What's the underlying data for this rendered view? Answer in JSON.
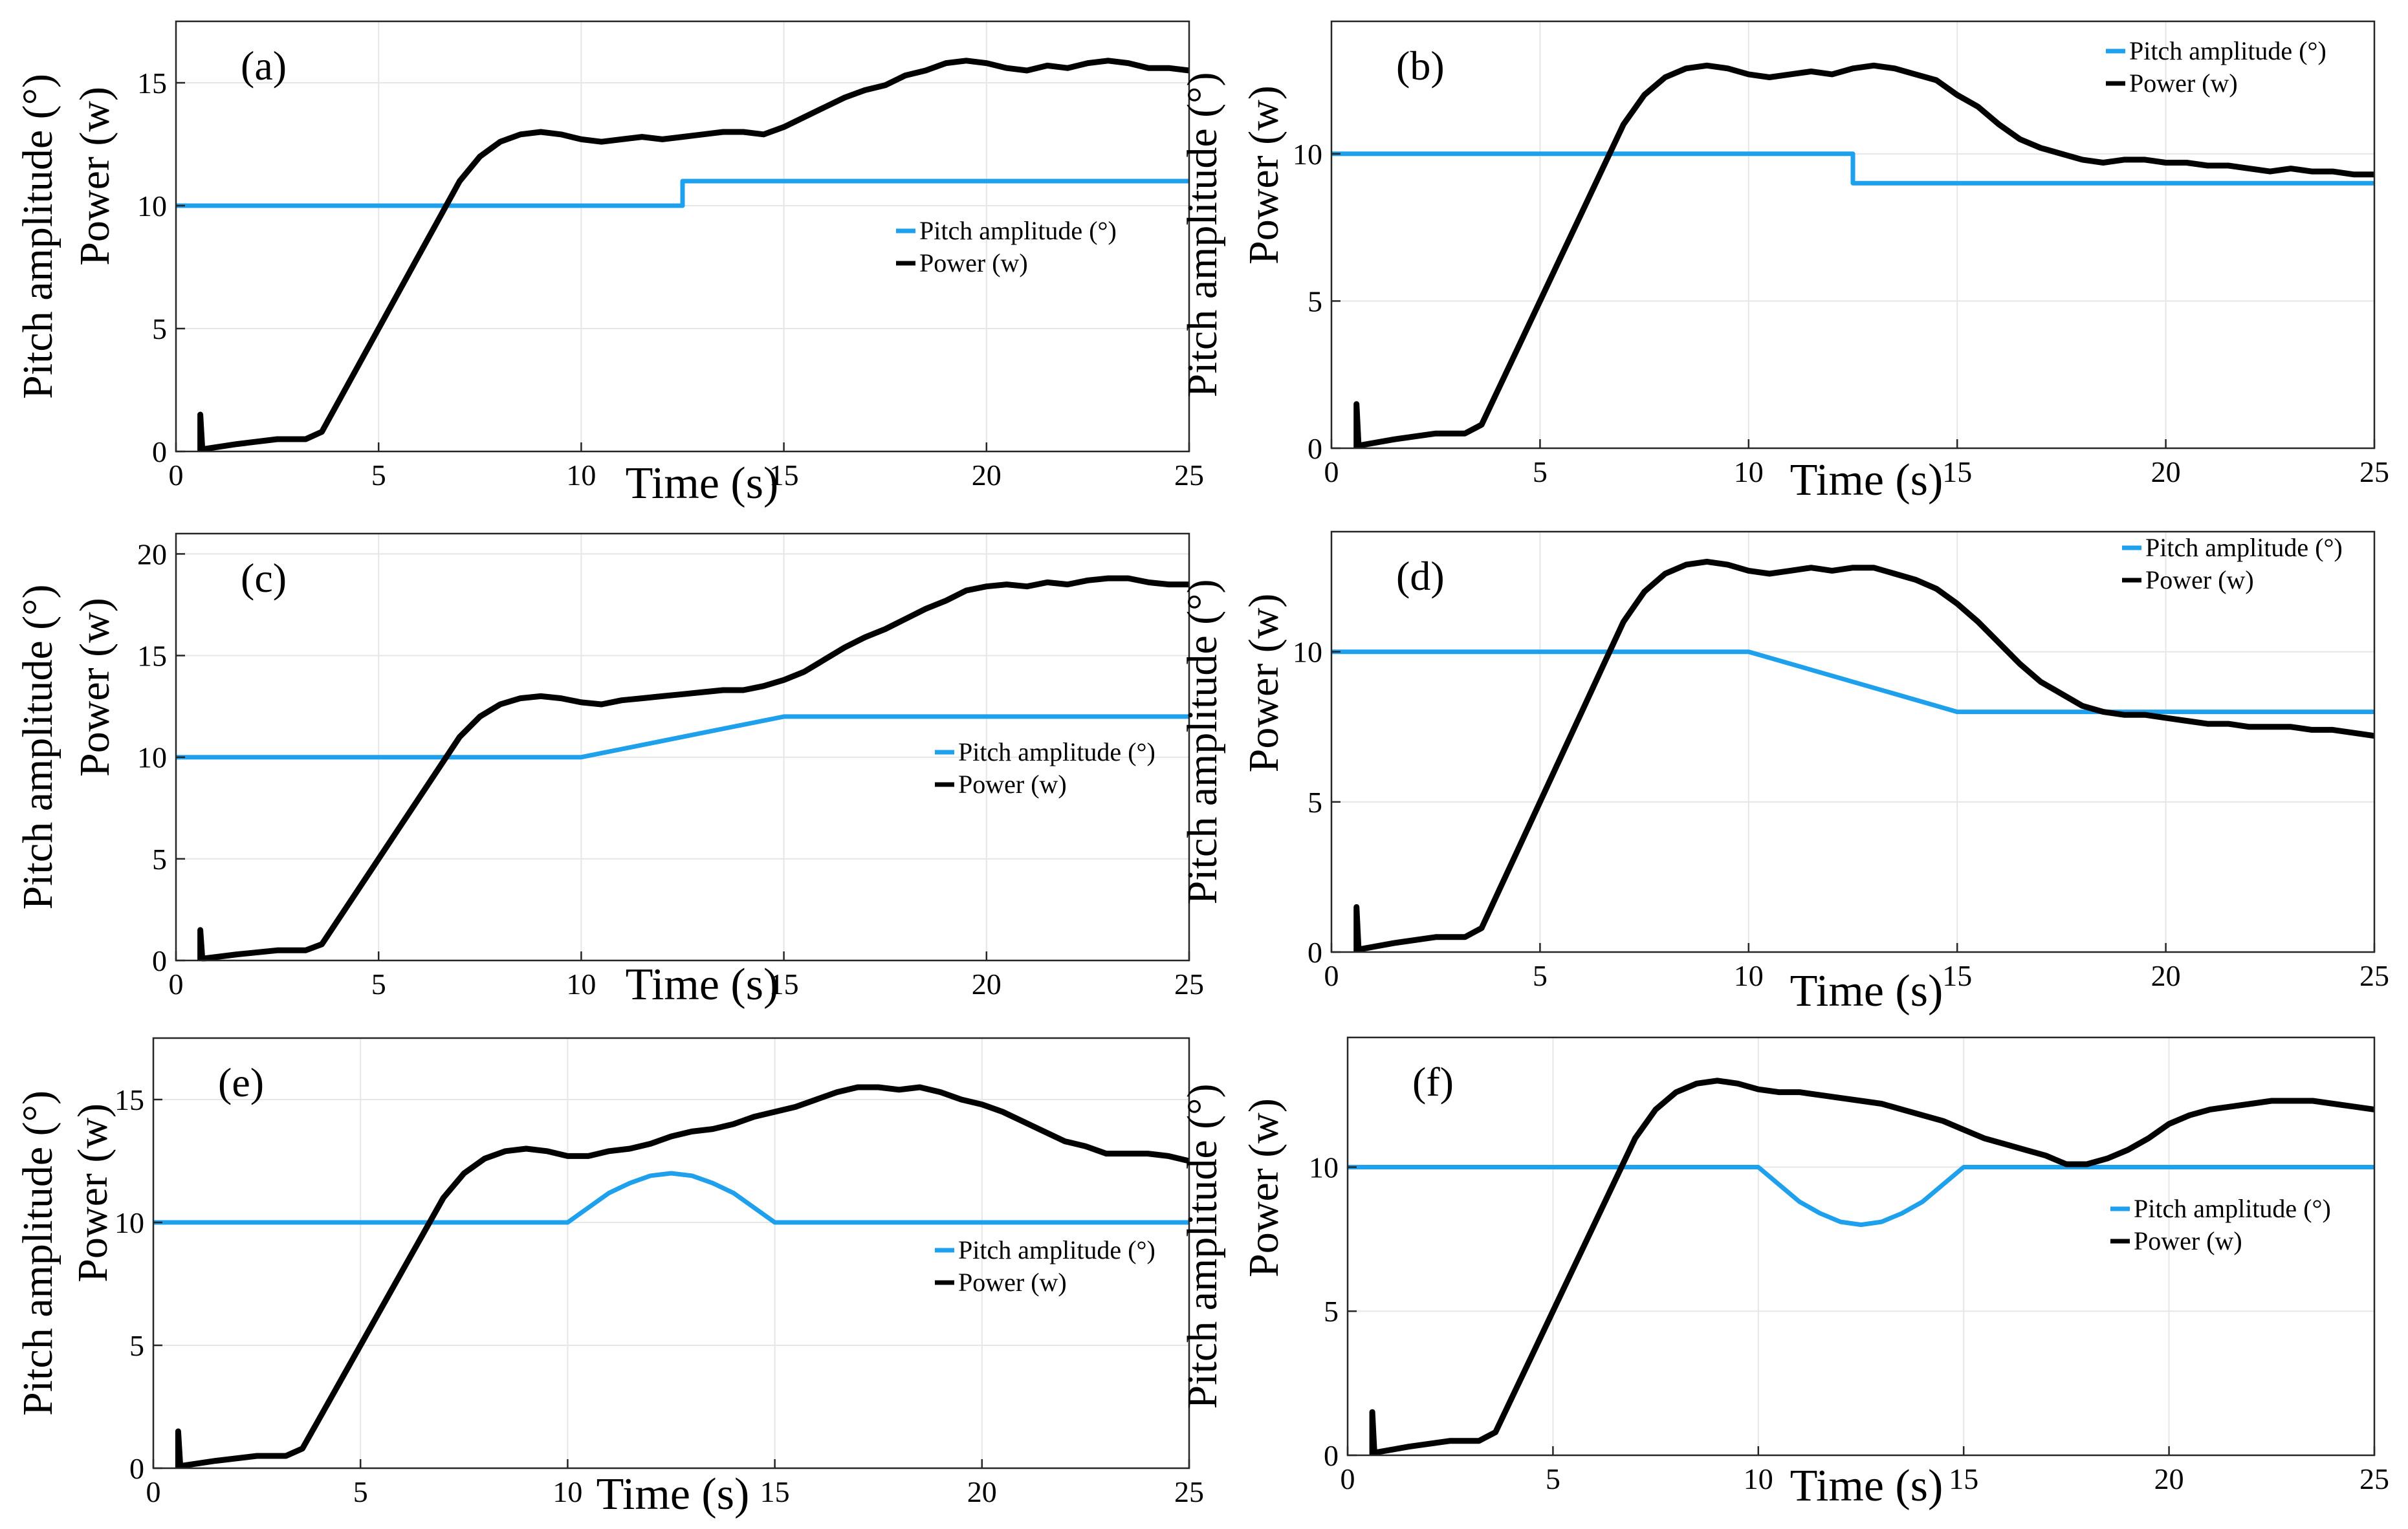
{
  "colors": {
    "pitch": "#1ea0ec",
    "power": "#000000",
    "grid": "#e6e6e6",
    "axis": "#262626"
  },
  "chart_data": [
    {
      "type": "line",
      "panel_label": "(a)",
      "xlabel": "Time (s)",
      "ylabel": "Pitch amplitude (°)",
      "ylabel2": "Power (w)",
      "xlim": [
        0,
        25
      ],
      "ylim": [
        0,
        17.5
      ],
      "xticks": [
        0,
        5,
        10,
        15,
        20,
        25
      ],
      "yticks": [
        0,
        5,
        10,
        15
      ],
      "legend": [
        "Pitch amplitude (°)",
        "Power (w)"
      ],
      "legend_position": "middle-right",
      "series": [
        {
          "name": "Pitch amplitude (°)",
          "x": [
            0,
            12.5,
            12.5,
            25
          ],
          "y": [
            10,
            10,
            11,
            11
          ]
        },
        {
          "name": "Power (w)",
          "x": [
            0.6,
            0.6,
            0.65,
            0.7,
            1.5,
            2.5,
            3.2,
            3.6,
            4.0,
            4.5,
            5.0,
            5.5,
            6.0,
            6.5,
            7.0,
            7.5,
            8.0,
            8.5,
            9.0,
            9.5,
            10.0,
            10.5,
            11.0,
            11.5,
            12.0,
            12.5,
            13.0,
            13.5,
            14.0,
            14.5,
            15.0,
            15.5,
            16.0,
            16.5,
            17.0,
            17.5,
            18.0,
            18.5,
            19.0,
            19.5,
            20.0,
            20.5,
            21.0,
            21.5,
            22.0,
            22.5,
            23.0,
            23.5,
            24.0,
            24.5,
            25.0
          ],
          "y": [
            0,
            1.5,
            0.1,
            0.1,
            0.3,
            0.5,
            0.5,
            0.8,
            2.0,
            3.5,
            5.0,
            6.5,
            8.0,
            9.5,
            11.0,
            12.0,
            12.6,
            12.9,
            13.0,
            12.9,
            12.7,
            12.6,
            12.7,
            12.8,
            12.7,
            12.8,
            12.9,
            13.0,
            13.0,
            12.9,
            13.2,
            13.6,
            14.0,
            14.4,
            14.7,
            14.9,
            15.3,
            15.5,
            15.8,
            15.9,
            15.8,
            15.6,
            15.5,
            15.7,
            15.6,
            15.8,
            15.9,
            15.8,
            15.6,
            15.6,
            15.5
          ]
        }
      ]
    },
    {
      "type": "line",
      "panel_label": "(b)",
      "xlabel": "Time (s)",
      "ylabel": "Pitch amplitude (°)",
      "ylabel2": "Power (w)",
      "xlim": [
        0,
        25
      ],
      "ylim": [
        0,
        14.5
      ],
      "xticks": [
        0,
        5,
        10,
        15,
        20,
        25
      ],
      "yticks": [
        0,
        5,
        10
      ],
      "legend": [
        "Pitch amplitude (°)",
        "Power (w)"
      ],
      "legend_position": "top-right",
      "series": [
        {
          "name": "Pitch amplitude (°)",
          "x": [
            0,
            12.5,
            12.5,
            25
          ],
          "y": [
            10,
            10,
            9,
            9
          ]
        },
        {
          "name": "Power (w)",
          "x": [
            0.6,
            0.6,
            0.65,
            0.7,
            1.5,
            2.5,
            3.2,
            3.6,
            4.0,
            4.5,
            5.0,
            5.5,
            6.0,
            6.5,
            7.0,
            7.5,
            8.0,
            8.5,
            9.0,
            9.5,
            10.0,
            10.5,
            11.0,
            11.5,
            12.0,
            12.5,
            13.0,
            13.5,
            14.0,
            14.5,
            15.0,
            15.5,
            16.0,
            16.5,
            17.0,
            17.5,
            18.0,
            18.5,
            19.0,
            19.5,
            20.0,
            20.5,
            21.0,
            21.5,
            22.0,
            22.5,
            23.0,
            23.5,
            24.0,
            24.5,
            25.0
          ],
          "y": [
            0,
            1.5,
            0.1,
            0.1,
            0.3,
            0.5,
            0.5,
            0.8,
            2.0,
            3.5,
            5.0,
            6.5,
            8.0,
            9.5,
            11.0,
            12.0,
            12.6,
            12.9,
            13.0,
            12.9,
            12.7,
            12.6,
            12.7,
            12.8,
            12.7,
            12.9,
            13.0,
            12.9,
            12.7,
            12.5,
            12.0,
            11.6,
            11.0,
            10.5,
            10.2,
            10.0,
            9.8,
            9.7,
            9.8,
            9.8,
            9.7,
            9.7,
            9.6,
            9.6,
            9.5,
            9.4,
            9.5,
            9.4,
            9.4,
            9.3,
            9.3
          ]
        }
      ]
    },
    {
      "type": "line",
      "panel_label": "(c)",
      "xlabel": "Time (s)",
      "ylabel": "Pitch amplitude (°)",
      "ylabel2": "Power (w)",
      "xlim": [
        0,
        25
      ],
      "ylim": [
        0,
        21
      ],
      "xticks": [
        0,
        5,
        10,
        15,
        20,
        25
      ],
      "yticks": [
        0,
        5,
        10,
        15,
        20
      ],
      "legend": [
        "Pitch amplitude (°)",
        "Power (w)"
      ],
      "legend_position": "middle-right",
      "series": [
        {
          "name": "Pitch amplitude (°)",
          "x": [
            0,
            10,
            15,
            25
          ],
          "y": [
            10,
            10,
            12,
            12
          ]
        },
        {
          "name": "Power (w)",
          "x": [
            0.6,
            0.6,
            0.65,
            0.7,
            1.5,
            2.5,
            3.2,
            3.6,
            4.0,
            4.5,
            5.0,
            5.5,
            6.0,
            6.5,
            7.0,
            7.5,
            8.0,
            8.5,
            9.0,
            9.5,
            10.0,
            10.5,
            11.0,
            11.5,
            12.0,
            12.5,
            13.0,
            13.5,
            14.0,
            14.5,
            15.0,
            15.5,
            16.0,
            16.5,
            17.0,
            17.5,
            18.0,
            18.5,
            19.0,
            19.5,
            20.0,
            20.5,
            21.0,
            21.5,
            22.0,
            22.5,
            23.0,
            23.5,
            24.0,
            24.5,
            25.0
          ],
          "y": [
            0,
            1.5,
            0.1,
            0.1,
            0.3,
            0.5,
            0.5,
            0.8,
            2.0,
            3.5,
            5.0,
            6.5,
            8.0,
            9.5,
            11.0,
            12.0,
            12.6,
            12.9,
            13.0,
            12.9,
            12.7,
            12.6,
            12.8,
            12.9,
            13.0,
            13.1,
            13.2,
            13.3,
            13.3,
            13.5,
            13.8,
            14.2,
            14.8,
            15.4,
            15.9,
            16.3,
            16.8,
            17.3,
            17.7,
            18.2,
            18.4,
            18.5,
            18.4,
            18.6,
            18.5,
            18.7,
            18.8,
            18.8,
            18.6,
            18.5,
            18.5
          ]
        }
      ]
    },
    {
      "type": "line",
      "panel_label": "(d)",
      "xlabel": "Time (s)",
      "ylabel": "Pitch amplitude (°)",
      "ylabel2": "Power (w)",
      "xlim": [
        0,
        25
      ],
      "ylim": [
        0,
        14
      ],
      "xticks": [
        0,
        5,
        10,
        15,
        20,
        25
      ],
      "yticks": [
        0,
        5,
        10
      ],
      "legend": [
        "Pitch amplitude (°)",
        "Power (w)"
      ],
      "legend_position": "top-right",
      "series": [
        {
          "name": "Pitch amplitude (°)",
          "x": [
            0,
            10,
            15,
            25
          ],
          "y": [
            10,
            10,
            8,
            8
          ]
        },
        {
          "name": "Power (w)",
          "x": [
            0.6,
            0.6,
            0.65,
            0.7,
            1.5,
            2.5,
            3.2,
            3.6,
            4.0,
            4.5,
            5.0,
            5.5,
            6.0,
            6.5,
            7.0,
            7.5,
            8.0,
            8.5,
            9.0,
            9.5,
            10.0,
            10.5,
            11.0,
            11.5,
            12.0,
            12.5,
            13.0,
            13.5,
            14.0,
            14.5,
            15.0,
            15.5,
            16.0,
            16.5,
            17.0,
            17.5,
            18.0,
            18.5,
            19.0,
            19.5,
            20.0,
            20.5,
            21.0,
            21.5,
            22.0,
            22.5,
            23.0,
            23.5,
            24.0,
            24.5,
            25.0
          ],
          "y": [
            0,
            1.5,
            0.1,
            0.1,
            0.3,
            0.5,
            0.5,
            0.8,
            2.0,
            3.5,
            5.0,
            6.5,
            8.0,
            9.5,
            11.0,
            12.0,
            12.6,
            12.9,
            13.0,
            12.9,
            12.7,
            12.6,
            12.7,
            12.8,
            12.7,
            12.8,
            12.8,
            12.6,
            12.4,
            12.1,
            11.6,
            11.0,
            10.3,
            9.6,
            9.0,
            8.6,
            8.2,
            8.0,
            7.9,
            7.9,
            7.8,
            7.7,
            7.6,
            7.6,
            7.5,
            7.5,
            7.5,
            7.4,
            7.4,
            7.3,
            7.2
          ]
        }
      ]
    },
    {
      "type": "line",
      "panel_label": "(e)",
      "xlabel": "Time (s)",
      "ylabel": "Pitch amplitude (°)",
      "ylabel2": "Power (w)",
      "xlim": [
        0,
        25
      ],
      "ylim": [
        0,
        17.5
      ],
      "xticks": [
        0,
        5,
        10,
        15,
        20,
        25
      ],
      "yticks": [
        0,
        5,
        10,
        15
      ],
      "legend": [
        "Pitch amplitude (°)",
        "Power (w)"
      ],
      "legend_position": "middle-right",
      "series": [
        {
          "name": "Pitch amplitude (°)",
          "x": [
            0,
            10,
            10.5,
            11,
            11.5,
            12,
            12.5,
            13,
            13.5,
            14,
            14.5,
            15,
            25
          ],
          "y": [
            10,
            10,
            10.6,
            11.2,
            11.6,
            11.9,
            12.0,
            11.9,
            11.6,
            11.2,
            10.6,
            10,
            10
          ]
        },
        {
          "name": "Power (w)",
          "x": [
            0.6,
            0.6,
            0.65,
            0.7,
            1.5,
            2.5,
            3.2,
            3.6,
            4.0,
            4.5,
            5.0,
            5.5,
            6.0,
            6.5,
            7.0,
            7.5,
            8.0,
            8.5,
            9.0,
            9.5,
            10.0,
            10.5,
            11.0,
            11.5,
            12.0,
            12.5,
            13.0,
            13.5,
            14.0,
            14.5,
            15.0,
            15.5,
            16.0,
            16.5,
            17.0,
            17.5,
            18.0,
            18.5,
            19.0,
            19.5,
            20.0,
            20.5,
            21.0,
            21.5,
            22.0,
            22.5,
            23.0,
            23.5,
            24.0,
            24.5,
            25.0
          ],
          "y": [
            0,
            1.5,
            0.1,
            0.1,
            0.3,
            0.5,
            0.5,
            0.8,
            2.0,
            3.5,
            5.0,
            6.5,
            8.0,
            9.5,
            11.0,
            12.0,
            12.6,
            12.9,
            13.0,
            12.9,
            12.7,
            12.7,
            12.9,
            13.0,
            13.2,
            13.5,
            13.7,
            13.8,
            14.0,
            14.3,
            14.5,
            14.7,
            15.0,
            15.3,
            15.5,
            15.5,
            15.4,
            15.5,
            15.3,
            15.0,
            14.8,
            14.5,
            14.1,
            13.7,
            13.3,
            13.1,
            12.8,
            12.8,
            12.8,
            12.7,
            12.5
          ]
        }
      ]
    },
    {
      "type": "line",
      "panel_label": "(f)",
      "xlabel": "Time (s)",
      "ylabel": "Pitch amplitude (°)",
      "ylabel2": "Power (w)",
      "xlim": [
        0,
        25
      ],
      "ylim": [
        0,
        14.5
      ],
      "xticks": [
        0,
        5,
        10,
        15,
        20,
        25
      ],
      "yticks": [
        0,
        5,
        10
      ],
      "legend": [
        "Pitch amplitude (°)",
        "Power (w)"
      ],
      "legend_position": "middle-right",
      "series": [
        {
          "name": "Pitch amplitude (°)",
          "x": [
            0,
            10,
            10.5,
            11,
            11.5,
            12,
            12.5,
            13,
            13.5,
            14,
            14.5,
            15,
            25
          ],
          "y": [
            10,
            10,
            9.4,
            8.8,
            8.4,
            8.1,
            8.0,
            8.1,
            8.4,
            8.8,
            9.4,
            10,
            10
          ]
        },
        {
          "name": "Power (w)",
          "x": [
            0.6,
            0.6,
            0.65,
            0.7,
            1.5,
            2.5,
            3.2,
            3.6,
            4.0,
            4.5,
            5.0,
            5.5,
            6.0,
            6.5,
            7.0,
            7.5,
            8.0,
            8.5,
            9.0,
            9.5,
            10.0,
            10.5,
            11.0,
            11.5,
            12.0,
            12.5,
            13.0,
            13.5,
            14.0,
            14.5,
            15.0,
            15.5,
            16.0,
            16.5,
            17.0,
            17.5,
            18.0,
            18.5,
            19.0,
            19.5,
            20.0,
            20.5,
            21.0,
            21.5,
            22.0,
            22.5,
            23.0,
            23.5,
            24.0,
            24.5,
            25.0
          ],
          "y": [
            0,
            1.5,
            0.1,
            0.1,
            0.3,
            0.5,
            0.5,
            0.8,
            2.0,
            3.5,
            5.0,
            6.5,
            8.0,
            9.5,
            11.0,
            12.0,
            12.6,
            12.9,
            13.0,
            12.9,
            12.7,
            12.6,
            12.6,
            12.5,
            12.4,
            12.3,
            12.2,
            12.0,
            11.8,
            11.6,
            11.3,
            11.0,
            10.8,
            10.6,
            10.4,
            10.1,
            10.1,
            10.3,
            10.6,
            11.0,
            11.5,
            11.8,
            12.0,
            12.1,
            12.2,
            12.3,
            12.3,
            12.3,
            12.2,
            12.1,
            12.0
          ]
        }
      ]
    }
  ]
}
